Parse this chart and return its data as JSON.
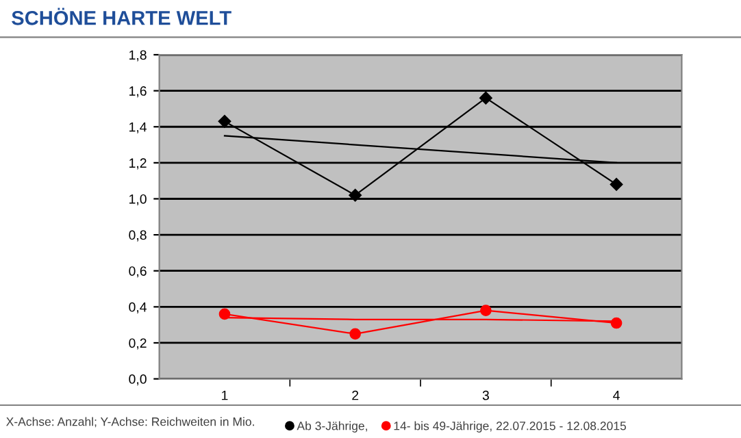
{
  "chart_data": {
    "type": "line",
    "title": "SCHÖNE HARTE WELT",
    "categories": [
      "1",
      "2",
      "3",
      "4"
    ],
    "series": [
      {
        "name": "Ab 3-Jährige,",
        "color": "#000000",
        "values": [
          1.43,
          1.02,
          1.56,
          1.08
        ],
        "marker": "diamond"
      },
      {
        "name": "14- bis 49-Jährige, 22.07.2015 - 12.08.2015",
        "color": "#ff0000",
        "values": [
          0.36,
          0.25,
          0.38,
          0.31
        ],
        "marker": "circle"
      },
      {
        "color": "#000000",
        "values": [
          1.35,
          1.3,
          1.25,
          1.2
        ],
        "marker": "none"
      },
      {
        "color": "#ff0000",
        "values": [
          0.34,
          0.33,
          0.33,
          0.32
        ],
        "marker": "none"
      }
    ],
    "ylim": [
      0,
      1.8
    ],
    "yticks": [
      {
        "value": 0,
        "label": "0,0"
      },
      {
        "value": 0.2,
        "label": "0,2"
      },
      {
        "value": 0.4,
        "label": "0,4"
      },
      {
        "value": 0.6,
        "label": "0,6"
      },
      {
        "value": 0.8,
        "label": "0,8"
      },
      {
        "value": 1.0,
        "label": "1,0"
      },
      {
        "value": 1.2,
        "label": "1,2"
      },
      {
        "value": 1.4,
        "label": "1,4"
      },
      {
        "value": 1.6,
        "label": "1,6"
      },
      {
        "value": 1.8,
        "label": "1,8"
      }
    ],
    "grid": "y",
    "legend": "bottom right",
    "annotations": [
      "X-Achse: Anzahl; Y-Achse: Reichweiten in Mio."
    ]
  }
}
